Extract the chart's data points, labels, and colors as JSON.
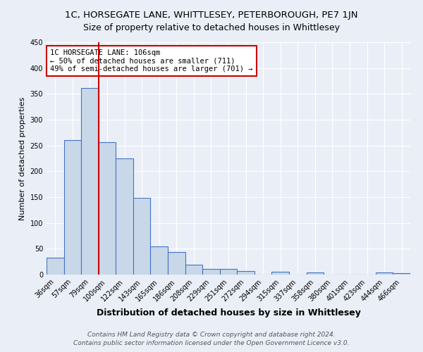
{
  "title": "1C, HORSEGATE LANE, WHITTLESEY, PETERBOROUGH, PE7 1JN",
  "subtitle": "Size of property relative to detached houses in Whittlesey",
  "xlabel": "Distribution of detached houses by size in Whittlesey",
  "ylabel": "Number of detached properties",
  "categories": [
    "36sqm",
    "57sqm",
    "79sqm",
    "100sqm",
    "122sqm",
    "143sqm",
    "165sqm",
    "186sqm",
    "208sqm",
    "229sqm",
    "251sqm",
    "272sqm",
    "294sqm",
    "315sqm",
    "337sqm",
    "358sqm",
    "380sqm",
    "401sqm",
    "423sqm",
    "444sqm",
    "466sqm"
  ],
  "values": [
    33,
    260,
    362,
    256,
    225,
    148,
    55,
    43,
    19,
    11,
    11,
    7,
    0,
    6,
    0,
    4,
    0,
    0,
    0,
    4,
    3
  ],
  "bar_color": "#c8d8e8",
  "bar_edge_color": "#4472c4",
  "red_line_index": 3,
  "red_line_color": "#cc0000",
  "annotation_line1": "1C HORSEGATE LANE: 106sqm",
  "annotation_line2": "← 50% of detached houses are smaller (711)",
  "annotation_line3": "49% of semi-detached houses are larger (701) →",
  "annotation_box_color": "#ffffff",
  "annotation_box_edge_color": "#cc0000",
  "footnote1": "Contains HM Land Registry data © Crown copyright and database right 2024.",
  "footnote2": "Contains public sector information licensed under the Open Government Licence v3.0.",
  "bg_color": "#eaeff7",
  "plot_bg_color": "#eaeff7",
  "grid_color": "#ffffff",
  "ylim": [
    0,
    450
  ],
  "title_fontsize": 9.5,
  "subtitle_fontsize": 9,
  "xlabel_fontsize": 9,
  "ylabel_fontsize": 8,
  "tick_fontsize": 7,
  "annotation_fontsize": 7.5,
  "footnote_fontsize": 6.5
}
